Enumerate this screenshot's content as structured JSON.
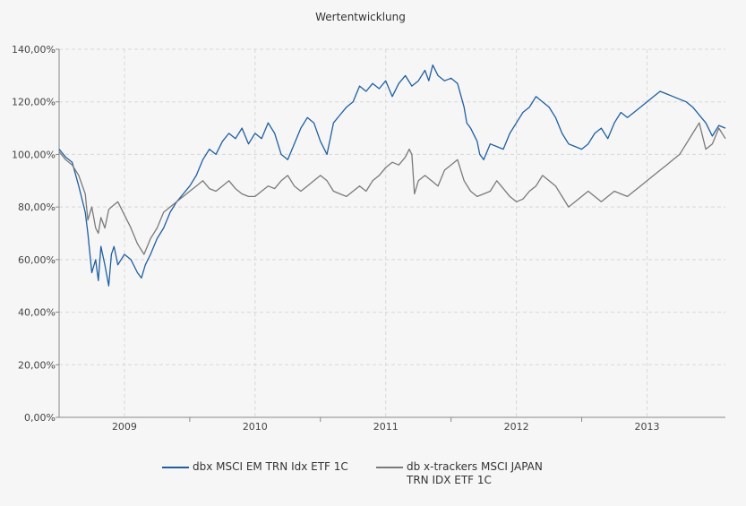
{
  "chart_data": {
    "type": "line",
    "title": "Wertentwicklung",
    "xlabel": "",
    "ylabel": "",
    "x_range": [
      2008.5,
      2013.6
    ],
    "ylim": [
      0,
      140
    ],
    "y_ticks": [
      0,
      20,
      40,
      60,
      80,
      100,
      120,
      140
    ],
    "y_tick_labels": [
      "0,00%",
      "20,00%",
      "40,00%",
      "60,00%",
      "80,00%",
      "100,00%",
      "120,00%",
      "140,00%"
    ],
    "x_ticks": [
      2009,
      2010,
      2011,
      2012,
      2013
    ],
    "x_tick_labels": [
      "2009",
      "2010",
      "2011",
      "2012",
      "2013"
    ],
    "grid": true,
    "legend_position": "bottom",
    "series": [
      {
        "name": "dbx MSCI EM TRN Idx ETF 1C",
        "color": "#1f5fa0",
        "x": [
          2008.5,
          2008.55,
          2008.6,
          2008.65,
          2008.7,
          2008.72,
          2008.75,
          2008.78,
          2008.8,
          2008.82,
          2008.85,
          2008.88,
          2008.9,
          2008.92,
          2008.95,
          2009.0,
          2009.05,
          2009.1,
          2009.13,
          2009.16,
          2009.2,
          2009.25,
          2009.3,
          2009.35,
          2009.4,
          2009.45,
          2009.5,
          2009.55,
          2009.6,
          2009.65,
          2009.7,
          2009.75,
          2009.8,
          2009.85,
          2009.9,
          2009.95,
          2010.0,
          2010.05,
          2010.1,
          2010.15,
          2010.2,
          2010.25,
          2010.3,
          2010.35,
          2010.4,
          2010.45,
          2010.5,
          2010.55,
          2010.6,
          2010.65,
          2010.7,
          2010.75,
          2010.8,
          2010.85,
          2010.9,
          2010.95,
          2011.0,
          2011.05,
          2011.1,
          2011.15,
          2011.2,
          2011.25,
          2011.3,
          2011.33,
          2011.36,
          2011.4,
          2011.45,
          2011.5,
          2011.55,
          2011.6,
          2011.62,
          2011.65,
          2011.7,
          2011.72,
          2011.75,
          2011.8,
          2011.85,
          2011.9,
          2011.95,
          2012.0,
          2012.05,
          2012.1,
          2012.15,
          2012.2,
          2012.25,
          2012.3,
          2012.35,
          2012.4,
          2012.45,
          2012.5,
          2012.55,
          2012.6,
          2012.65,
          2012.7,
          2012.75,
          2012.8,
          2012.85,
          2012.9,
          2012.95,
          2013.0,
          2013.05,
          2013.1,
          2013.15,
          2013.2,
          2013.25,
          2013.3,
          2013.35,
          2013.4,
          2013.45,
          2013.5,
          2013.55,
          2013.6
        ],
        "values": [
          102,
          99,
          97,
          88,
          78,
          70,
          55,
          60,
          52,
          65,
          58,
          50,
          62,
          65,
          58,
          62,
          60,
          55,
          53,
          58,
          62,
          68,
          72,
          78,
          82,
          85,
          88,
          92,
          98,
          102,
          100,
          105,
          108,
          106,
          110,
          104,
          108,
          106,
          112,
          108,
          100,
          98,
          104,
          110,
          114,
          112,
          105,
          100,
          112,
          115,
          118,
          120,
          126,
          124,
          127,
          125,
          128,
          122,
          127,
          130,
          126,
          128,
          132,
          128,
          134,
          130,
          128,
          129,
          127,
          118,
          112,
          110,
          105,
          100,
          98,
          104,
          103,
          102,
          108,
          112,
          116,
          118,
          122,
          120,
          118,
          114,
          108,
          104,
          103,
          102,
          104,
          108,
          110,
          106,
          112,
          116,
          114,
          116,
          118,
          120,
          122,
          124,
          123,
          122,
          121,
          120,
          118,
          115,
          112,
          107,
          111,
          110
        ]
      },
      {
        "name": "db x-trackers MSCI JAPAN TRN IDX ETF 1C",
        "color": "#7a7a7a",
        "x": [
          2008.5,
          2008.55,
          2008.6,
          2008.65,
          2008.7,
          2008.72,
          2008.75,
          2008.78,
          2008.8,
          2008.82,
          2008.85,
          2008.88,
          2008.9,
          2008.95,
          2009.0,
          2009.05,
          2009.1,
          2009.15,
          2009.2,
          2009.25,
          2009.3,
          2009.35,
          2009.4,
          2009.45,
          2009.5,
          2009.55,
          2009.6,
          2009.65,
          2009.7,
          2009.75,
          2009.8,
          2009.85,
          2009.9,
          2009.95,
          2010.0,
          2010.05,
          2010.1,
          2010.15,
          2010.2,
          2010.25,
          2010.3,
          2010.35,
          2010.4,
          2010.45,
          2010.5,
          2010.55,
          2010.6,
          2010.65,
          2010.7,
          2010.75,
          2010.8,
          2010.85,
          2010.9,
          2010.95,
          2011.0,
          2011.05,
          2011.1,
          2011.15,
          2011.18,
          2011.2,
          2011.22,
          2011.25,
          2011.3,
          2011.35,
          2011.4,
          2011.45,
          2011.5,
          2011.55,
          2011.6,
          2011.65,
          2011.7,
          2011.75,
          2011.8,
          2011.85,
          2011.9,
          2011.95,
          2012.0,
          2012.05,
          2012.1,
          2012.15,
          2012.2,
          2012.25,
          2012.3,
          2012.35,
          2012.4,
          2012.45,
          2012.5,
          2012.55,
          2012.6,
          2012.65,
          2012.7,
          2012.75,
          2012.8,
          2012.85,
          2012.9,
          2012.95,
          2013.0,
          2013.05,
          2013.1,
          2013.15,
          2013.2,
          2013.25,
          2013.3,
          2013.35,
          2013.4,
          2013.45,
          2013.5,
          2013.55,
          2013.6
        ],
        "values": [
          101,
          98,
          96,
          92,
          85,
          75,
          80,
          72,
          70,
          76,
          72,
          79,
          80,
          82,
          77,
          72,
          66,
          62,
          68,
          72,
          78,
          80,
          82,
          84,
          86,
          88,
          90,
          87,
          86,
          88,
          90,
          87,
          85,
          84,
          84,
          86,
          88,
          87,
          90,
          92,
          88,
          86,
          88,
          90,
          92,
          90,
          86,
          85,
          84,
          86,
          88,
          86,
          90,
          92,
          95,
          97,
          96,
          99,
          102,
          100,
          85,
          90,
          92,
          90,
          88,
          94,
          96,
          98,
          90,
          86,
          84,
          85,
          86,
          90,
          87,
          84,
          82,
          83,
          86,
          88,
          92,
          90,
          88,
          84,
          80,
          82,
          84,
          86,
          84,
          82,
          84,
          86,
          85,
          84,
          86,
          88,
          90,
          92,
          94,
          96,
          98,
          100,
          104,
          108,
          112,
          102,
          104,
          110,
          106
        ]
      }
    ]
  }
}
